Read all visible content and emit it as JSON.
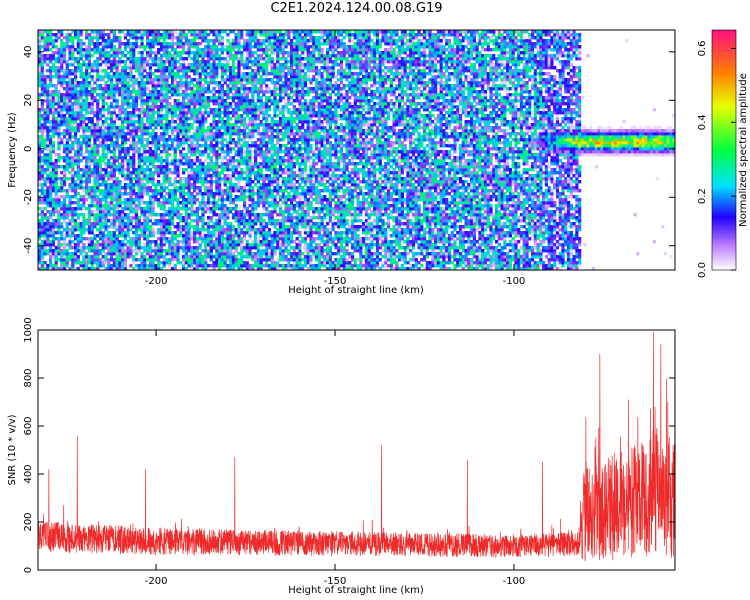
{
  "title": "C2E1.2024.124.00.08.G19",
  "colors": {
    "snr_line": "#ee2a2a",
    "spectrogram_noise": "#8a1aff"
  },
  "chart_data": [
    {
      "type": "heatmap",
      "xlabel": "Height of straight line (km)",
      "ylabel": "Frequency (Hz)",
      "xlim": [
        -233,
        -55
      ],
      "ylim": [
        -50,
        49
      ],
      "xticks": [
        -200,
        -150,
        -100
      ],
      "yticks": [
        -40,
        -20,
        0,
        20,
        40
      ],
      "colorbar": {
        "label": "Normalized spectral amplitude",
        "range": [
          0,
          0.65
        ],
        "ticks": [
          0.0,
          0.2,
          0.4,
          0.6
        ],
        "colormap": "rainbow"
      },
      "noise_region": {
        "x": [
          -233,
          -81
        ],
        "level": 0.15
      },
      "signal_band": {
        "x": [
          -97,
          -55
        ],
        "frequency_center": 3,
        "frequency_width": 8,
        "peak_amplitude": 0.5
      }
    },
    {
      "type": "line",
      "xlabel": "Height of straight line (km)",
      "ylabel": "SNR (10 * v/v)",
      "xlim": [
        -233,
        -55
      ],
      "ylim": [
        0,
        1000
      ],
      "xticks": [
        -200,
        -150,
        -100
      ],
      "yticks": [
        0,
        200,
        400,
        600,
        800,
        1000
      ],
      "series": [
        {
          "color": "#ee2a2a",
          "baseline": [
            [
              -233,
              140
            ],
            [
              -200,
              120
            ],
            [
              -150,
              110
            ],
            [
              -100,
              100
            ],
            [
              -82,
              110
            ],
            [
              -80,
              250
            ],
            [
              -70,
              270
            ],
            [
              -60,
              320
            ],
            [
              -55,
              300
            ]
          ],
          "peaks": [
            [
              -230,
              420
            ],
            [
              -222,
              560
            ],
            [
              -203,
              420
            ],
            [
              -178,
              470
            ],
            [
              -137,
              520
            ],
            [
              -113,
              460
            ],
            [
              -92,
              450
            ],
            [
              -76,
              900
            ],
            [
              -68,
              710
            ],
            [
              -61,
              990
            ],
            [
              -59,
              940
            ],
            [
              -57,
              700
            ]
          ]
        }
      ]
    }
  ]
}
